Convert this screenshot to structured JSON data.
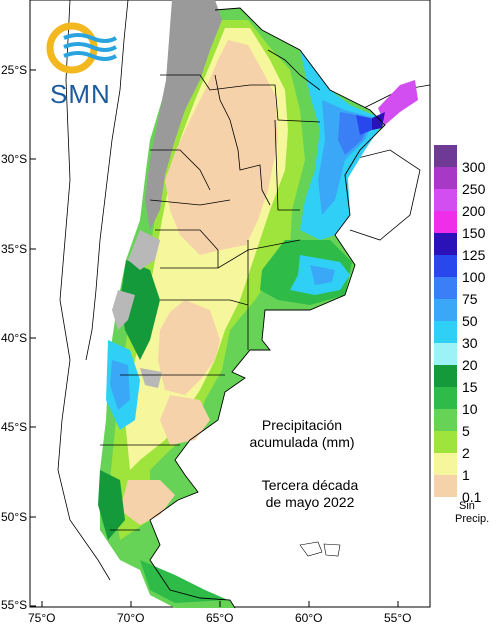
{
  "logo": {
    "text": "SMN"
  },
  "latitude_labels": [
    "25°S",
    "30°S",
    "35°S",
    "40°S",
    "45°S",
    "50°S",
    "55°S"
  ],
  "longitude_labels": [
    "75°O",
    "70°O",
    "65°O",
    "60°O",
    "55°O"
  ],
  "annotation": {
    "line1": "Precipitación",
    "line2": "acumulada (mm)",
    "line3": "Tercera década",
    "line4": "de mayo 2022"
  },
  "legend": {
    "items": [
      {
        "label": "300",
        "color": "#6e3a96"
      },
      {
        "label": "250",
        "color": "#a838c6"
      },
      {
        "label": "200",
        "color": "#d24ef0"
      },
      {
        "label": "150",
        "color": "#ee2ee8"
      },
      {
        "label": "125",
        "color": "#2b12b8"
      },
      {
        "label": "100",
        "color": "#2848ee"
      },
      {
        "label": "75",
        "color": "#3a7ff6"
      },
      {
        "label": "50",
        "color": "#3aa8f6"
      },
      {
        "label": "30",
        "color": "#30d0f6"
      },
      {
        "label": "20",
        "color": "#9cf2f6"
      },
      {
        "label": "15",
        "color": "#149a3a"
      },
      {
        "label": "10",
        "color": "#2fbb48"
      },
      {
        "label": "5",
        "color": "#66d356"
      },
      {
        "label": "2",
        "color": "#9ee43c"
      },
      {
        "label": "1",
        "color": "#f6f69c"
      },
      {
        "label": "0.1",
        "color": "#f6d2aa"
      }
    ],
    "no_precip_label": "Sin\nPrecip.",
    "no_precip_label_1": "Sin",
    "no_precip_label_2": "Precip."
  },
  "colors": {
    "mountain_gray": "#9a9a9a",
    "ocean": "#ffffff",
    "border": "#000000"
  }
}
